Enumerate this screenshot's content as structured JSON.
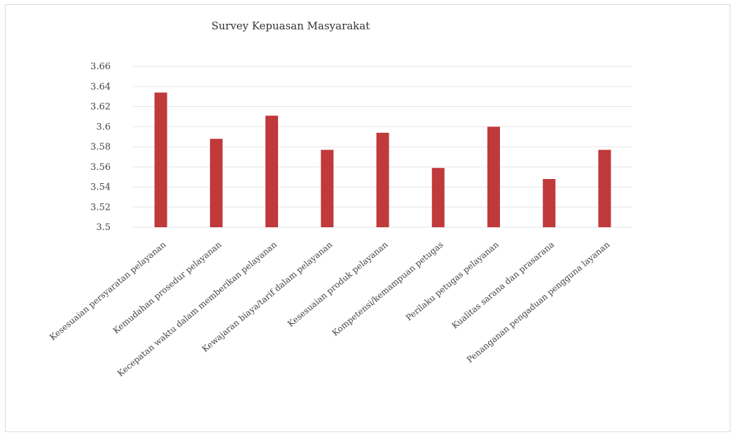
{
  "chart_data": {
    "type": "bar",
    "title": "Survey Kepuasan  Masyarakat",
    "categories": [
      "Kesesuaian persyaratan pelayanan",
      "Kemudahan prosedur pelayanan",
      "Kecepatan waktu dalam memberikan pelayanan",
      "Kewajaran biaya/tarif dalam pelayanan",
      "Kesesuaian produk pelayanan",
      "Kompetensi/kemampuan petugas",
      "Perilaku petugas pelayanan",
      "Kualitas sarana dan prasarana",
      "Penanganan pengaduan pengguna layanan"
    ],
    "values": [
      3.634,
      3.588,
      3.611,
      3.577,
      3.594,
      3.559,
      3.6,
      3.548,
      3.577
    ],
    "yticks": [
      "3.5",
      "3.52",
      "3.54",
      "3.56",
      "3.58",
      "3.6",
      "3.62",
      "3.64",
      "3.66"
    ],
    "ylim": [
      3.5,
      3.66
    ],
    "xlabel": "",
    "ylabel": "",
    "grid": true,
    "legend": "none",
    "bar_color": "#c0393b",
    "grid_color": "#e6e6e6"
  }
}
